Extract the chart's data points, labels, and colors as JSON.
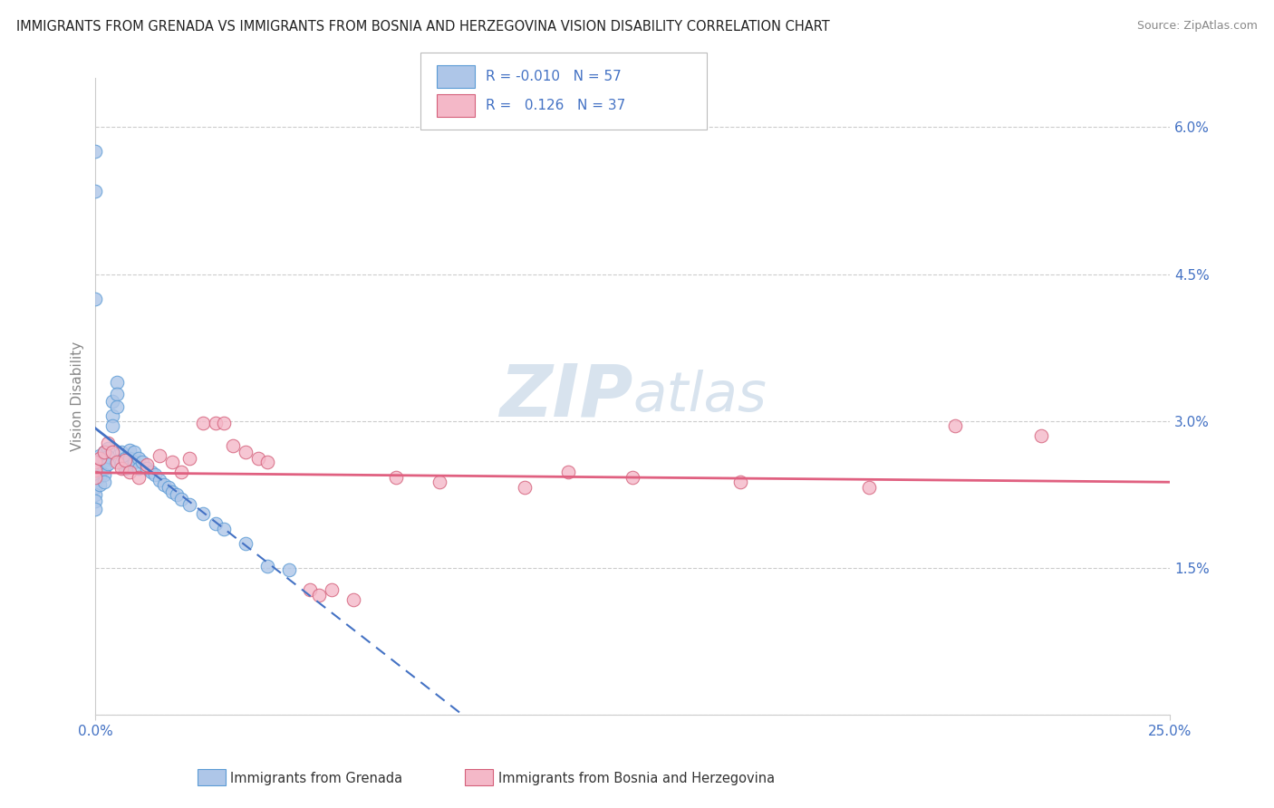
{
  "title": "IMMIGRANTS FROM GRENADA VS IMMIGRANTS FROM BOSNIA AND HERZEGOVINA VISION DISABILITY CORRELATION CHART",
  "source": "Source: ZipAtlas.com",
  "ylabel": "Vision Disability",
  "xlim": [
    0.0,
    0.25
  ],
  "ylim": [
    0.0,
    0.065
  ],
  "ytick_vals": [
    0.0,
    0.015,
    0.03,
    0.045,
    0.06
  ],
  "ytick_labels": [
    "",
    "1.5%",
    "3.0%",
    "4.5%",
    "6.0%"
  ],
  "xtick_vals": [
    0.0,
    0.25
  ],
  "xtick_labels": [
    "0.0%",
    "25.0%"
  ],
  "series1_name": "Immigrants from Grenada",
  "series1_color": "#aec6e8",
  "series1_edge_color": "#5b9bd5",
  "series1_line_color": "#4472c4",
  "series1_R": "-0.010",
  "series1_N": "57",
  "series2_name": "Immigrants from Bosnia and Herzegovina",
  "series2_color": "#f4b8c8",
  "series2_edge_color": "#d45f7a",
  "series2_line_color": "#e06080",
  "series2_R": "0.126",
  "series2_N": "37",
  "legend_text_color": "#4472c4",
  "axis_label_color": "#4472c4",
  "tick_label_color": "#888888",
  "background_color": "#ffffff",
  "grid_color": "#cccccc",
  "spine_color": "#cccccc",
  "watermark_color": "#c8d8e8",
  "grenada_x": [
    0.0,
    0.0,
    0.0,
    0.0,
    0.0,
    0.0,
    0.0,
    0.0,
    0.0,
    0.0,
    0.001,
    0.001,
    0.001,
    0.001,
    0.001,
    0.002,
    0.002,
    0.002,
    0.002,
    0.002,
    0.003,
    0.003,
    0.003,
    0.004,
    0.004,
    0.004,
    0.005,
    0.005,
    0.005,
    0.006,
    0.006,
    0.007,
    0.007,
    0.008,
    0.008,
    0.008,
    0.009,
    0.009,
    0.01,
    0.01,
    0.011,
    0.012,
    0.013,
    0.014,
    0.015,
    0.016,
    0.017,
    0.018,
    0.019,
    0.02,
    0.022,
    0.025,
    0.028,
    0.03,
    0.035,
    0.04,
    0.045
  ],
  "grenada_y": [
    0.0575,
    0.0535,
    0.0425,
    0.026,
    0.0248,
    0.024,
    0.0232,
    0.0225,
    0.0218,
    0.021,
    0.0265,
    0.0258,
    0.025,
    0.0243,
    0.0235,
    0.0268,
    0.026,
    0.0252,
    0.0245,
    0.0238,
    0.0272,
    0.0264,
    0.0256,
    0.032,
    0.0305,
    0.0295,
    0.034,
    0.0328,
    0.0315,
    0.0268,
    0.0258,
    0.0262,
    0.0252,
    0.027,
    0.0262,
    0.0254,
    0.0268,
    0.0258,
    0.0262,
    0.0252,
    0.0258,
    0.0252,
    0.0248,
    0.0245,
    0.024,
    0.0235,
    0.0232,
    0.0228,
    0.0225,
    0.022,
    0.0215,
    0.0205,
    0.0195,
    0.019,
    0.0175,
    0.0152,
    0.0148
  ],
  "bosnia_x": [
    0.0,
    0.0,
    0.0,
    0.001,
    0.002,
    0.003,
    0.004,
    0.005,
    0.006,
    0.007,
    0.008,
    0.01,
    0.012,
    0.015,
    0.018,
    0.02,
    0.022,
    0.025,
    0.028,
    0.03,
    0.032,
    0.035,
    0.038,
    0.04,
    0.05,
    0.052,
    0.055,
    0.06,
    0.07,
    0.08,
    0.1,
    0.11,
    0.125,
    0.15,
    0.18,
    0.2,
    0.22
  ],
  "bosnia_y": [
    0.0258,
    0.025,
    0.0242,
    0.0262,
    0.0268,
    0.0278,
    0.0268,
    0.0258,
    0.0252,
    0.026,
    0.0248,
    0.0242,
    0.0255,
    0.0265,
    0.0258,
    0.0248,
    0.0262,
    0.0298,
    0.0298,
    0.0298,
    0.0275,
    0.0268,
    0.0262,
    0.0258,
    0.0128,
    0.0122,
    0.0128,
    0.0118,
    0.0242,
    0.0238,
    0.0232,
    0.0248,
    0.0242,
    0.0238,
    0.0232,
    0.0295,
    0.0285
  ]
}
